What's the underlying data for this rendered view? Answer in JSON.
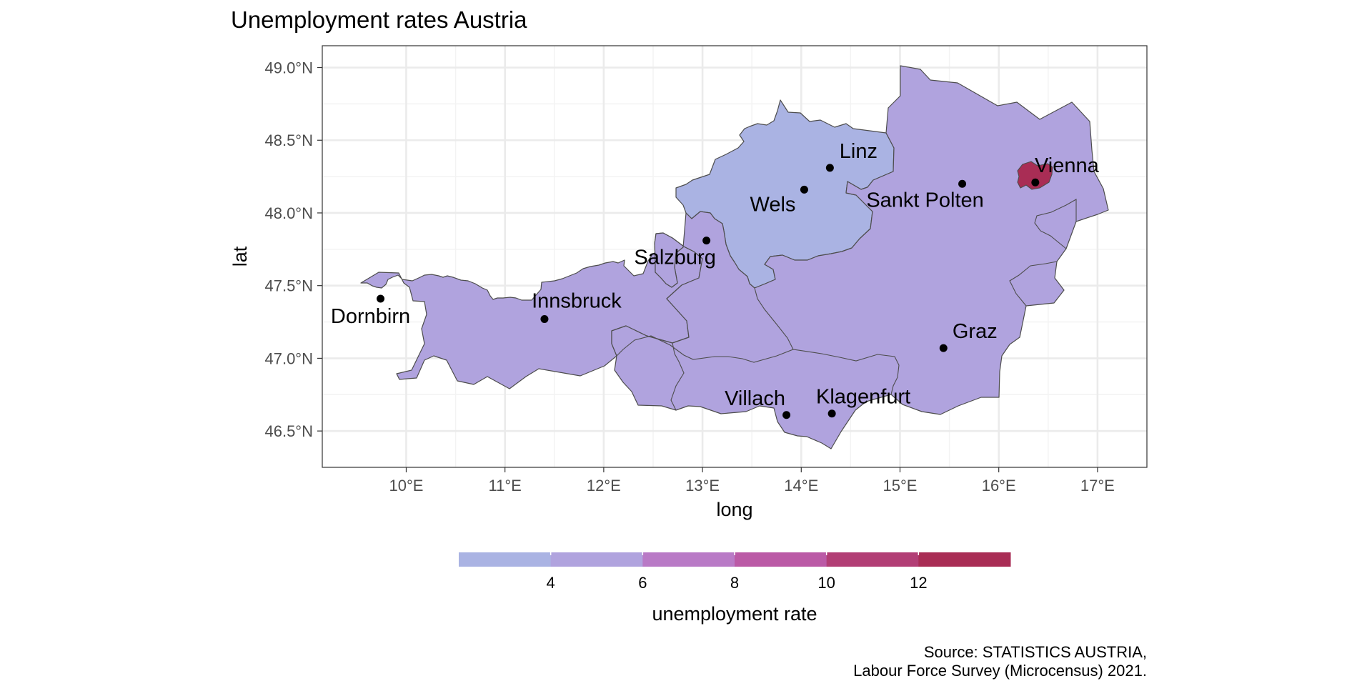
{
  "title": "Unemployment rates Austria",
  "axes": {
    "xlabel": "long",
    "ylabel": "lat",
    "xlim": [
      9.15,
      17.5
    ],
    "ylim": [
      46.25,
      49.15
    ],
    "x_ticks": [
      {
        "value": 10,
        "label": "10°E"
      },
      {
        "value": 11,
        "label": "11°E"
      },
      {
        "value": 12,
        "label": "12°E"
      },
      {
        "value": 13,
        "label": "13°E"
      },
      {
        "value": 14,
        "label": "14°E"
      },
      {
        "value": 15,
        "label": "15°E"
      },
      {
        "value": 16,
        "label": "16°E"
      },
      {
        "value": 17,
        "label": "17°E"
      }
    ],
    "y_ticks": [
      {
        "value": 46.5,
        "label": "46.5°N"
      },
      {
        "value": 47.0,
        "label": "47.0°N"
      },
      {
        "value": 47.5,
        "label": "47.5°N"
      },
      {
        "value": 48.0,
        "label": "48.0°N"
      },
      {
        "value": 48.5,
        "label": "48.5°N"
      },
      {
        "value": 49.0,
        "label": "49.0°N"
      }
    ],
    "grid": true
  },
  "legend": {
    "title": "unemployment rate",
    "placement": "bottom",
    "range": [
      2,
      14
    ],
    "bins": [
      {
        "from": 2,
        "to": 4,
        "color": "#aab3e3"
      },
      {
        "from": 4,
        "to": 6,
        "color": "#b0a3de"
      },
      {
        "from": 6,
        "to": 8,
        "color": "#b97ac6"
      },
      {
        "from": 8,
        "to": 10,
        "color": "#bb5aa6"
      },
      {
        "from": 10,
        "to": 12,
        "color": "#b23e75"
      },
      {
        "from": 12,
        "to": 14,
        "color": "#a92d55"
      }
    ],
    "tick_labels": [
      {
        "value": 4,
        "label": "4"
      },
      {
        "value": 6,
        "label": "6"
      },
      {
        "value": 8,
        "label": "8"
      },
      {
        "value": 10,
        "label": "10"
      },
      {
        "value": 12,
        "label": "12"
      }
    ]
  },
  "caption": {
    "line1": "Source: STATISTICS AUSTRIA,",
    "line2": "Labour Force Survey (Microcensus) 2021."
  },
  "regions": [
    {
      "id": "west",
      "color": "#b0a3de"
    },
    {
      "id": "upper-austria",
      "color": "#aab3e3"
    },
    {
      "id": "east",
      "color": "#b0a3de"
    },
    {
      "id": "vienna",
      "color": "#a92d55"
    }
  ],
  "chart_data": {
    "type": "map",
    "title": "Unemployment rates Austria",
    "xlabel": "long",
    "ylabel": "lat",
    "cities": [
      {
        "name": "Vienna",
        "lon": 16.37,
        "lat": 48.21
      },
      {
        "name": "Linz",
        "lon": 14.29,
        "lat": 48.31
      },
      {
        "name": "Wels",
        "lon": 14.03,
        "lat": 48.16
      },
      {
        "name": "Sankt Polten",
        "lon": 15.63,
        "lat": 48.2
      },
      {
        "name": "Salzburg",
        "lon": 13.04,
        "lat": 47.81
      },
      {
        "name": "Innsbruck",
        "lon": 11.4,
        "lat": 47.27
      },
      {
        "name": "Dornbirn",
        "lon": 9.74,
        "lat": 47.41
      },
      {
        "name": "Graz",
        "lon": 15.44,
        "lat": 47.07
      },
      {
        "name": "Villach",
        "lon": 13.85,
        "lat": 46.61
      },
      {
        "name": "Klagenfurt",
        "lon": 14.31,
        "lat": 46.62
      }
    ]
  }
}
